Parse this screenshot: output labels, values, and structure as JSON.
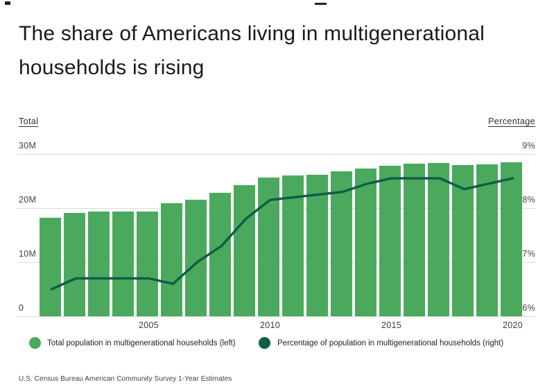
{
  "title": "The share of Americans living in multigenerational households is rising",
  "axes": {
    "left_header": "Total",
    "right_header": "Percentage",
    "left_ticks": [
      "30M",
      "20M",
      "10M",
      "0"
    ],
    "right_ticks": [
      "9%",
      "8%",
      "7%",
      "6%"
    ],
    "x_ticks": [
      "2005",
      "2010",
      "2015",
      "2020"
    ]
  },
  "legend": [
    {
      "label": "Total population in multigenerational households (left)",
      "color": "#4aa95c"
    },
    {
      "label": "Percentage of population in multigenerational households (right)",
      "color": "#0e5e47"
    }
  ],
  "source": "U.S. Census Bureau American Community Survey 1-Year Estimates",
  "colors": {
    "bar": "#4aa95c",
    "line": "#0e5e47",
    "grid": "#d9d9d9"
  },
  "chart_data": {
    "type": "bar+line",
    "title": "The share of Americans living in multigenerational households is rising",
    "x": [
      2001,
      2002,
      2003,
      2004,
      2005,
      2006,
      2007,
      2008,
      2009,
      2010,
      2011,
      2012,
      2013,
      2014,
      2015,
      2016,
      2017,
      2018,
      2019,
      2020
    ],
    "x_tick_labels": [
      2005,
      2010,
      2015,
      2020
    ],
    "series": [
      {
        "name": "Total population in multigenerational households (left)",
        "type": "bar",
        "axis": "left",
        "unit": "millions",
        "values": [
          18.2,
          19.1,
          19.4,
          19.4,
          19.4,
          20.9,
          21.6,
          22.8,
          24.2,
          25.6,
          26.0,
          26.2,
          26.8,
          27.3,
          27.8,
          28.2,
          28.3,
          27.9,
          28.1,
          28.4
        ]
      },
      {
        "name": "Percentage of population in multigenerational households (right)",
        "type": "line",
        "axis": "right",
        "unit": "%",
        "values": [
          6.5,
          6.7,
          6.7,
          6.7,
          6.7,
          6.6,
          7.0,
          7.3,
          7.8,
          8.15,
          8.2,
          8.25,
          8.3,
          8.45,
          8.55,
          8.55,
          8.55,
          8.35,
          8.45,
          8.55
        ]
      }
    ],
    "left_axis": {
      "label": "Total",
      "range": [
        0,
        30
      ],
      "unit": "M",
      "ticks": [
        0,
        10,
        20,
        30
      ]
    },
    "right_axis": {
      "label": "Percentage",
      "range": [
        6,
        9
      ],
      "unit": "%",
      "ticks": [
        6,
        7,
        8,
        9
      ]
    },
    "grid": true,
    "legend_position": "bottom"
  }
}
